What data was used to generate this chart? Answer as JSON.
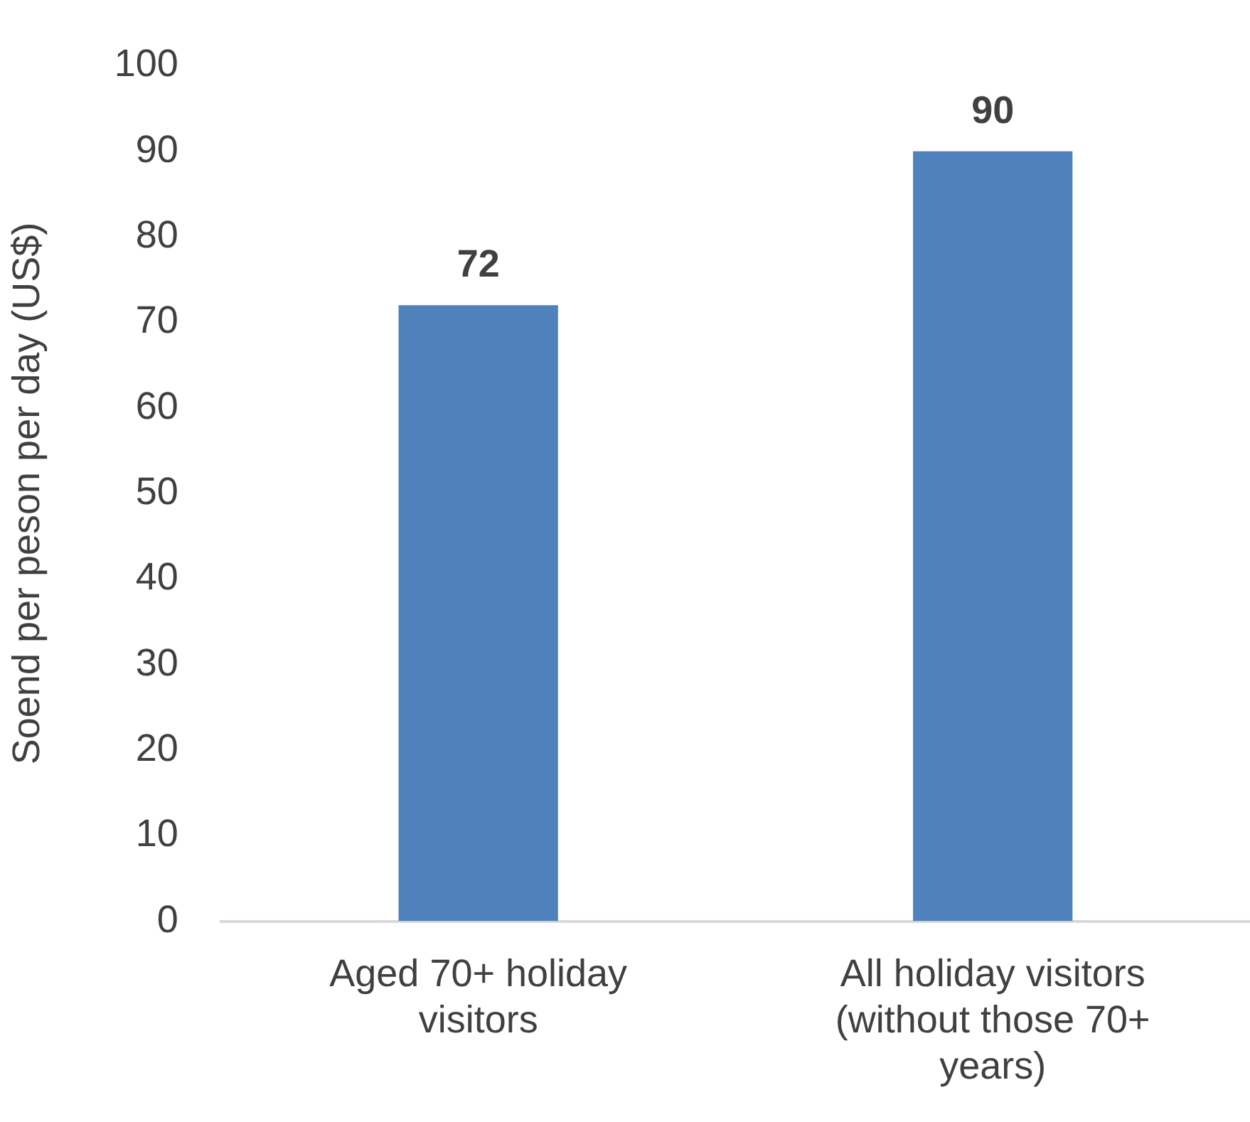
{
  "chart_data": {
    "type": "bar",
    "ylabel": "Soend per peson per day (US$)",
    "categories": [
      "Aged 70+ holiday visitors",
      "All holiday visitors (without those 70+ years)"
    ],
    "values": [
      72,
      90
    ],
    "color": "#4f81bd",
    "ylim": [
      0,
      100
    ],
    "yticks": [
      0,
      10,
      20,
      30,
      40,
      50,
      60,
      70,
      80,
      90,
      100
    ],
    "grid": false,
    "legend": false,
    "data_labels": true
  }
}
